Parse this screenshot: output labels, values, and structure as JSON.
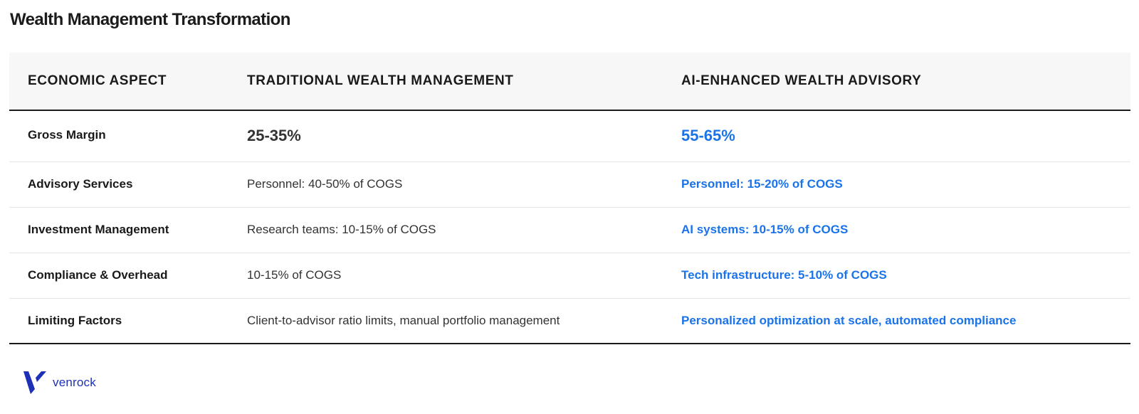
{
  "title": "Wealth Management Transformation",
  "table": {
    "headers": [
      "ECONOMIC ASPECT",
      "TRADITIONAL WEALTH MANAGEMENT",
      "AI-ENHANCED WEALTH ADVISORY"
    ],
    "rows": [
      {
        "aspect": "Gross Margin",
        "traditional": "25-35%",
        "ai": "55-65%"
      },
      {
        "aspect": "Advisory Services",
        "traditional": "Personnel: 40-50% of COGS",
        "ai": "Personnel: 15-20% of COGS"
      },
      {
        "aspect": "Investment Management",
        "traditional": "Research teams: 10-15% of COGS",
        "ai": "AI systems: 10-15% of COGS"
      },
      {
        "aspect": "Compliance & Overhead",
        "traditional": "10-15% of COGS",
        "ai": "Tech infrastructure: 5-10% of COGS"
      },
      {
        "aspect": "Limiting Factors",
        "traditional": "Client-to-advisor ratio limits, manual portfolio management",
        "ai": "Personalized optimization at scale, automated compliance"
      }
    ]
  },
  "brand": {
    "name": "venrock",
    "logo_icon": "venrock-v-logo-icon",
    "color": "#1e2fb8"
  },
  "colors": {
    "accent": "#1a73e8",
    "header_bg": "#f7f7f7",
    "text": "#1a1a1a"
  }
}
